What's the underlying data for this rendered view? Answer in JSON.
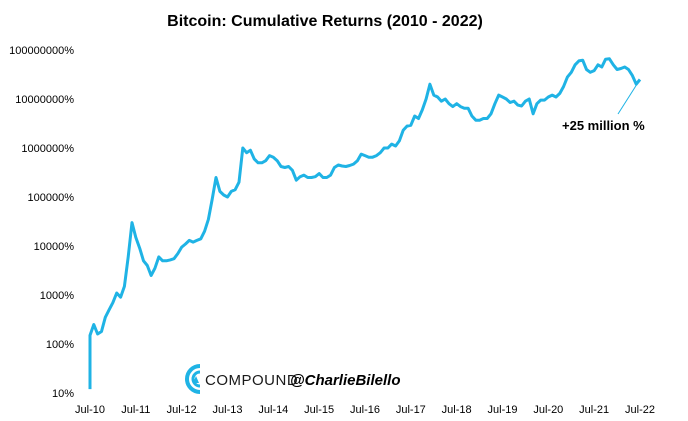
{
  "chart_data": {
    "type": "line",
    "title": "Bitcoin: Cumulative Returns (2010 - 2022)",
    "xlabel": "",
    "ylabel": "",
    "y_scale": "log",
    "ylim": [
      10,
      100000000
    ],
    "grid": false,
    "x_tick_labels": [
      "Jul-10",
      "Jul-11",
      "Jul-12",
      "Jul-13",
      "Jul-14",
      "Jul-15",
      "Jul-16",
      "Jul-17",
      "Jul-18",
      "Jul-19",
      "Jul-20",
      "Jul-21",
      "Jul-22"
    ],
    "y_tick_labels": [
      "10%",
      "100%",
      "1000%",
      "10000%",
      "100000%",
      "1000000%",
      "10000000%",
      "100000000%"
    ],
    "series": [
      {
        "color": "#1fb3e5",
        "points": [
          [
            "2010-07",
            12
          ],
          [
            "2010-07",
            150
          ],
          [
            "2010-08",
            250
          ],
          [
            "2010-09",
            160
          ],
          [
            "2010-10",
            180
          ],
          [
            "2010-11",
            350
          ],
          [
            "2010-12",
            500
          ],
          [
            "2011-01",
            700
          ],
          [
            "2011-02",
            1100
          ],
          [
            "2011-03",
            900
          ],
          [
            "2011-04",
            1500
          ],
          [
            "2011-05",
            6000
          ],
          [
            "2011-06",
            30000
          ],
          [
            "2011-07",
            15000
          ],
          [
            "2011-08",
            9000
          ],
          [
            "2011-09",
            5000
          ],
          [
            "2011-10",
            4000
          ],
          [
            "2011-11",
            2500
          ],
          [
            "2011-12",
            3500
          ],
          [
            "2012-01",
            6000
          ],
          [
            "2012-02",
            5000
          ],
          [
            "2012-03",
            5000
          ],
          [
            "2012-04",
            5200
          ],
          [
            "2012-05",
            5500
          ],
          [
            "2012-06",
            7000
          ],
          [
            "2012-07",
            9500
          ],
          [
            "2012-08",
            11000
          ],
          [
            "2012-09",
            13000
          ],
          [
            "2012-10",
            12000
          ],
          [
            "2012-11",
            13000
          ],
          [
            "2012-12",
            14000
          ],
          [
            "2013-01",
            20000
          ],
          [
            "2013-02",
            35000
          ],
          [
            "2013-03",
            90000
          ],
          [
            "2013-04",
            250000
          ],
          [
            "2013-05",
            130000
          ],
          [
            "2013-06",
            110000
          ],
          [
            "2013-07",
            100000
          ],
          [
            "2013-08",
            130000
          ],
          [
            "2013-09",
            140000
          ],
          [
            "2013-10",
            200000
          ],
          [
            "2013-11",
            1000000
          ],
          [
            "2013-12",
            800000
          ],
          [
            "2014-01",
            900000
          ],
          [
            "2014-02",
            600000
          ],
          [
            "2014-03",
            500000
          ],
          [
            "2014-04",
            500000
          ],
          [
            "2014-05",
            550000
          ],
          [
            "2014-06",
            700000
          ],
          [
            "2014-07",
            650000
          ],
          [
            "2014-08",
            550000
          ],
          [
            "2014-09",
            420000
          ],
          [
            "2014-10",
            400000
          ],
          [
            "2014-11",
            420000
          ],
          [
            "2014-12",
            350000
          ],
          [
            "2015-01",
            220000
          ],
          [
            "2015-02",
            260000
          ],
          [
            "2015-03",
            280000
          ],
          [
            "2015-04",
            250000
          ],
          [
            "2015-05",
            250000
          ],
          [
            "2015-06",
            260000
          ],
          [
            "2015-07",
            300000
          ],
          [
            "2015-08",
            250000
          ],
          [
            "2015-09",
            250000
          ],
          [
            "2015-10",
            280000
          ],
          [
            "2015-11",
            400000
          ],
          [
            "2015-12",
            450000
          ],
          [
            "2016-01",
            430000
          ],
          [
            "2016-02",
            420000
          ],
          [
            "2016-03",
            440000
          ],
          [
            "2016-04",
            470000
          ],
          [
            "2016-05",
            550000
          ],
          [
            "2016-06",
            750000
          ],
          [
            "2016-07",
            700000
          ],
          [
            "2016-08",
            650000
          ],
          [
            "2016-09",
            650000
          ],
          [
            "2016-10",
            700000
          ],
          [
            "2016-11",
            800000
          ],
          [
            "2016-12",
            1000000
          ],
          [
            "2017-01",
            1000000
          ],
          [
            "2017-02",
            1200000
          ],
          [
            "2017-03",
            1100000
          ],
          [
            "2017-04",
            1400000
          ],
          [
            "2017-05",
            2300000
          ],
          [
            "2017-06",
            2800000
          ],
          [
            "2017-07",
            2900000
          ],
          [
            "2017-08",
            4500000
          ],
          [
            "2017-09",
            4000000
          ],
          [
            "2017-10",
            6000000
          ],
          [
            "2017-11",
            10000000
          ],
          [
            "2017-12",
            20000000
          ],
          [
            "2018-01",
            12000000
          ],
          [
            "2018-02",
            11000000
          ],
          [
            "2018-03",
            9000000
          ],
          [
            "2018-04",
            10000000
          ],
          [
            "2018-05",
            8000000
          ],
          [
            "2018-06",
            7000000
          ],
          [
            "2018-07",
            8000000
          ],
          [
            "2018-08",
            7000000
          ],
          [
            "2018-09",
            6500000
          ],
          [
            "2018-10",
            6500000
          ],
          [
            "2018-11",
            4500000
          ],
          [
            "2018-12",
            3700000
          ],
          [
            "2019-01",
            3700000
          ],
          [
            "2019-02",
            4000000
          ],
          [
            "2019-03",
            4000000
          ],
          [
            "2019-04",
            5000000
          ],
          [
            "2019-05",
            8000000
          ],
          [
            "2019-06",
            12000000
          ],
          [
            "2019-07",
            11000000
          ],
          [
            "2019-08",
            10000000
          ],
          [
            "2019-09",
            8500000
          ],
          [
            "2019-10",
            9000000
          ],
          [
            "2019-11",
            7500000
          ],
          [
            "2019-12",
            7200000
          ],
          [
            "2020-01",
            9000000
          ],
          [
            "2020-02",
            10000000
          ],
          [
            "2020-03",
            5000000
          ],
          [
            "2020-04",
            8000000
          ],
          [
            "2020-05",
            9500000
          ],
          [
            "2020-06",
            9500000
          ],
          [
            "2020-07",
            11000000
          ],
          [
            "2020-08",
            12000000
          ],
          [
            "2020-09",
            11000000
          ],
          [
            "2020-10",
            13000000
          ],
          [
            "2020-11",
            18000000
          ],
          [
            "2020-12",
            28000000
          ],
          [
            "2021-01",
            35000000
          ],
          [
            "2021-02",
            50000000
          ],
          [
            "2021-03",
            60000000
          ],
          [
            "2021-04",
            62000000
          ],
          [
            "2021-05",
            40000000
          ],
          [
            "2021-06",
            35000000
          ],
          [
            "2021-07",
            38000000
          ],
          [
            "2021-08",
            50000000
          ],
          [
            "2021-09",
            45000000
          ],
          [
            "2021-10",
            65000000
          ],
          [
            "2021-11",
            66000000
          ],
          [
            "2021-12",
            50000000
          ],
          [
            "2022-01",
            40000000
          ],
          [
            "2022-02",
            42000000
          ],
          [
            "2022-03",
            45000000
          ],
          [
            "2022-04",
            40000000
          ],
          [
            "2022-05",
            30000000
          ],
          [
            "2022-06",
            20000000
          ],
          [
            "2022-07",
            25000000
          ]
        ]
      }
    ],
    "annotation": "+25 million %"
  },
  "branding": {
    "logo_text": "COMPOUND",
    "handle": "@CharlieBilello",
    "logo_color": "#1fb3e5"
  }
}
